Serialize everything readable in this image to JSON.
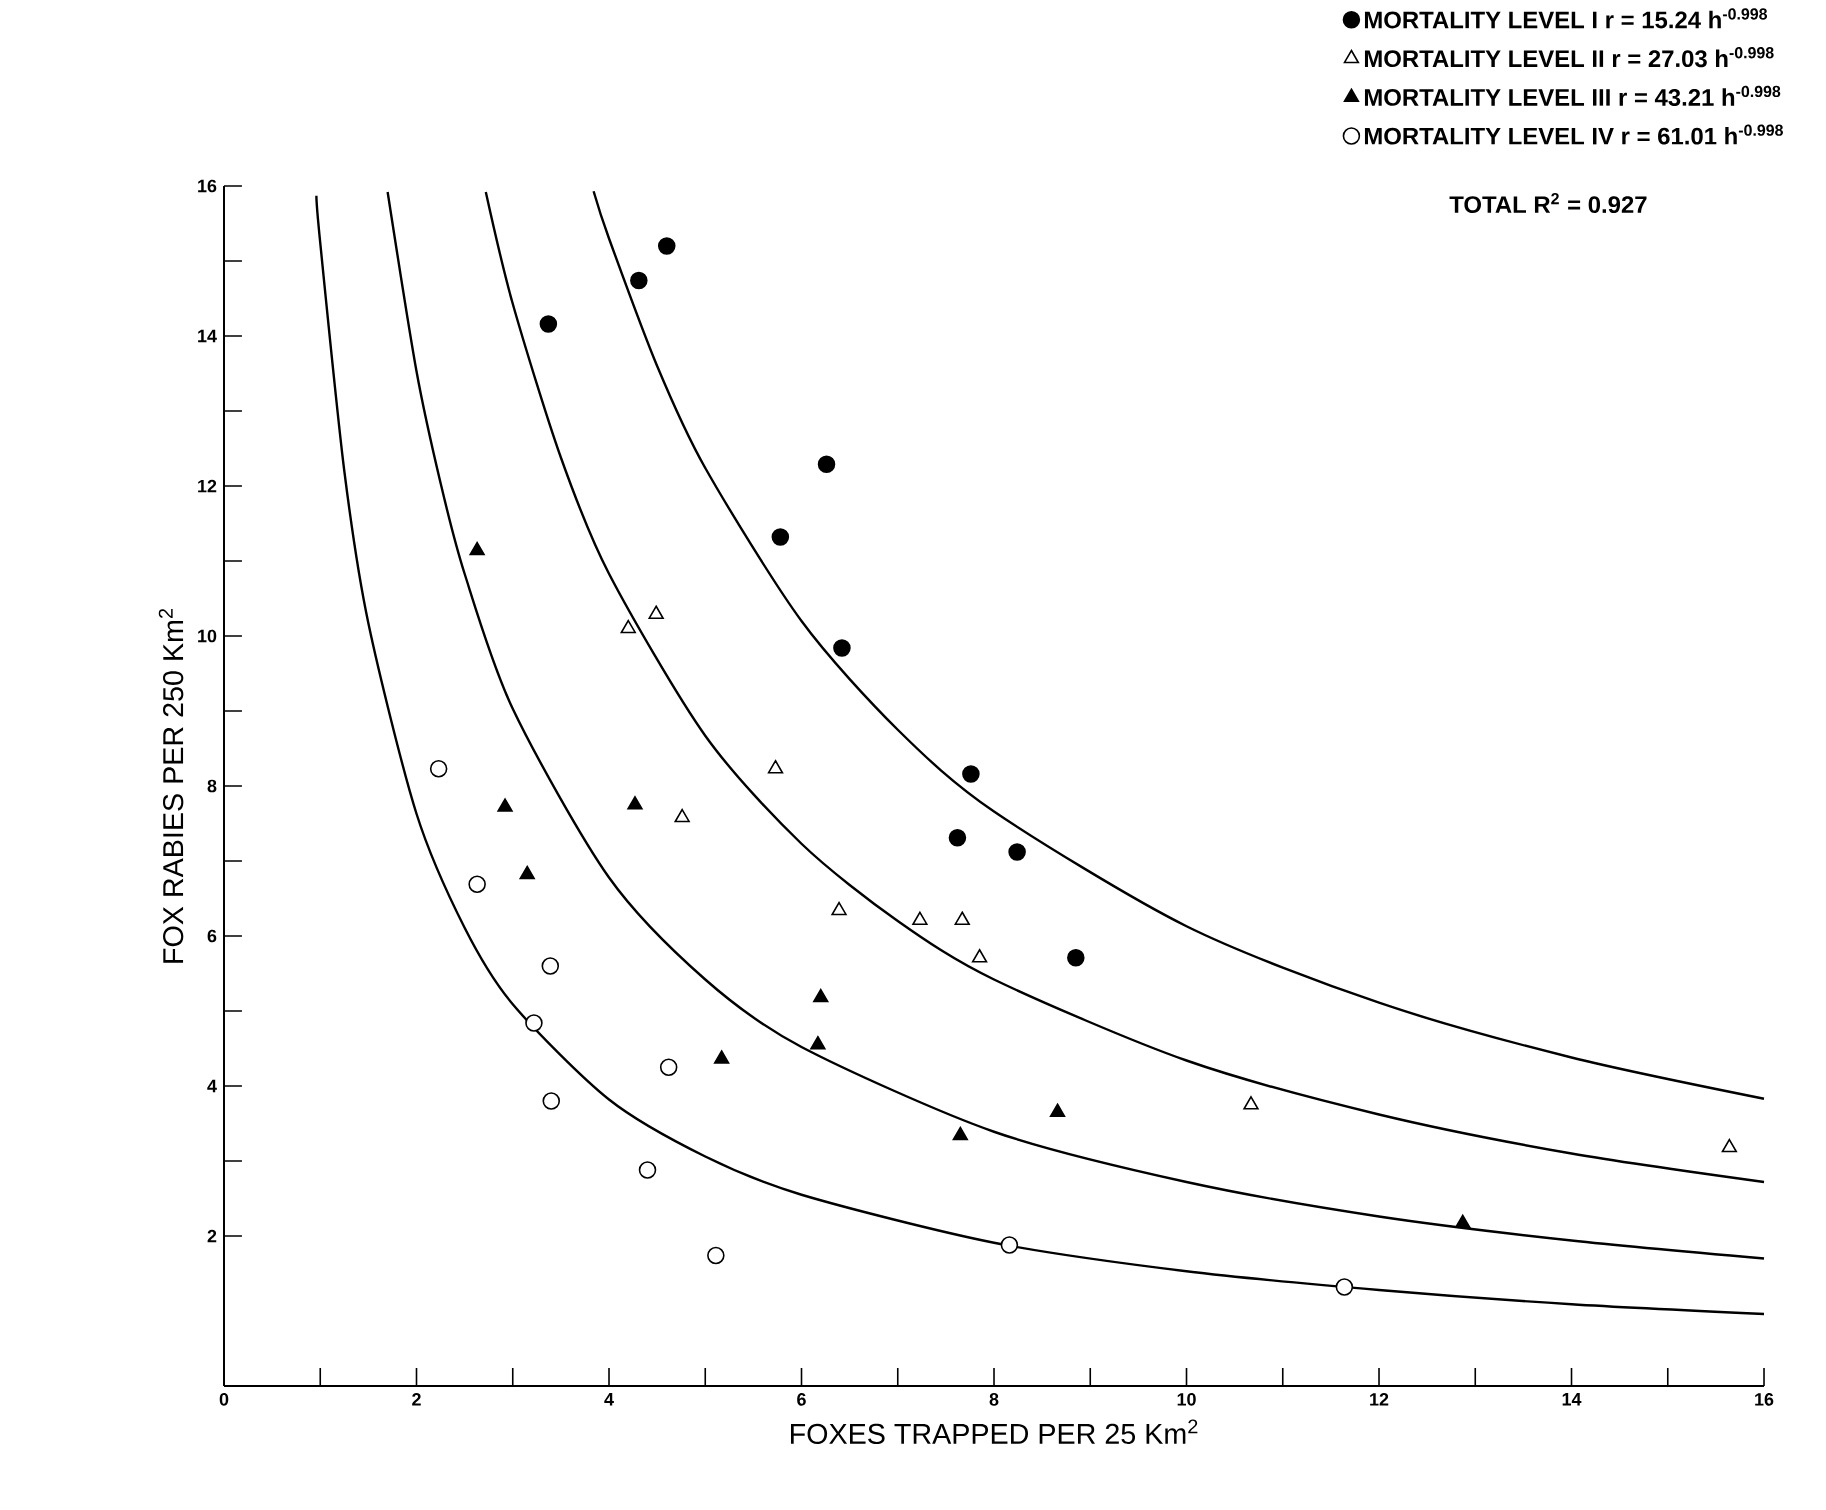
{
  "chart_data": {
    "type": "scatter",
    "xlabel": "FOXES  TRAPPED  PER  25 Km$^{2}$",
    "ylabel": "FOX  RABIES  PER  250 Km$^{2}$",
    "xlim": [
      0,
      16
    ],
    "ylim": [
      0,
      16
    ],
    "xticks": [
      0,
      2,
      4,
      6,
      8,
      10,
      12,
      14,
      16
    ],
    "yticks": [
      2,
      4,
      6,
      8,
      10,
      12,
      14,
      16
    ],
    "legend": "top right",
    "grid": false,
    "annotations": [
      "TOTAL R$^{2}$ = 0.927"
    ],
    "series": [
      {
        "name": "MORTALITY  LEVEL I   r = 15.24 h$^{-0.998}$",
        "color": "#000000",
        "marker": "circle",
        "colors": [
          "#000000",
          "#000000",
          "#000000",
          "#000000",
          "#000000",
          "#000000",
          "#000000",
          "#000000",
          "#000000",
          "#000000"
        ],
        "x": [
          3.37,
          4.31,
          4.6,
          6.26,
          5.78,
          6.42,
          7.76,
          7.62,
          8.24,
          8.85
        ],
        "values": [
          14.16,
          14.74,
          15.2,
          12.29,
          11.32,
          9.84,
          8.16,
          7.31,
          7.12,
          5.71
        ]
      },
      {
        "name": "MORTALITY  LEVEL II  r = 27.03 h$^{-0.998}$",
        "color": "#000000",
        "marker": "triangle",
        "colors": [
          "#ffffff",
          "#ffffff",
          "#ffffff",
          "#ffffff",
          "#ffffff",
          "#ffffff",
          "#ffffff",
          "#ffffff",
          "#ffffff",
          "#ffffff"
        ],
        "x": [
          4.2,
          4.49,
          5.73,
          4.76,
          6.39,
          7.23,
          7.67,
          7.85,
          10.67,
          15.64
        ],
        "values": [
          10.1,
          10.29,
          8.23,
          7.58,
          6.34,
          6.21,
          6.21,
          5.71,
          3.75,
          3.18
        ]
      },
      {
        "name": "MORTALITY  LEVEL III  r = 43.21 h$^{-0.998}$",
        "color": "#000000",
        "marker": "triangle",
        "colors": [
          "#000000",
          "#000000",
          "#000000",
          "#000000",
          "#000000",
          "#000000",
          "#000000",
          "#000000",
          "#000000",
          "#000000"
        ],
        "x": [
          2.63,
          2.92,
          3.15,
          4.27,
          5.17,
          6.2,
          6.17,
          7.65,
          8.66,
          12.87
        ],
        "values": [
          11.14,
          7.72,
          6.82,
          7.75,
          4.36,
          5.18,
          4.55,
          3.34,
          3.65,
          2.17
        ]
      },
      {
        "name": "MORTALITY  LEVEL IV  r = 61.01 h$^{-0.998}$",
        "color": "#000000",
        "marker": "circle",
        "colors": [
          "#ffffff",
          "#ffffff",
          "#ffffff",
          "#ffffff",
          "#ffffff",
          "#ffffff",
          "#ffffff",
          "#ffffff",
          "#ffffff",
          "#ffffff"
        ],
        "x": [
          2.23,
          2.63,
          3.39,
          3.22,
          3.4,
          4.62,
          4.4,
          5.11,
          8.16,
          11.64
        ],
        "values": [
          8.23,
          6.69,
          5.6,
          4.84,
          3.8,
          4.25,
          2.88,
          1.74,
          1.88,
          1.32
        ]
      },
      {
        "type": "line",
        "color": "#000000",
        "marker": "none",
        "x": [
          0.96,
          1,
          1.25,
          1.5,
          2,
          2.5,
          3,
          4,
          5,
          6,
          8,
          10,
          12,
          14,
          16
        ],
        "values": [
          15.87,
          15.24,
          12.2,
          10.17,
          7.63,
          6.11,
          5.09,
          3.82,
          3.06,
          2.55,
          1.91,
          1.53,
          1.28,
          1.09,
          0.96
        ]
      },
      {
        "type": "line",
        "color": "#000000",
        "marker": "none",
        "x": [
          1.7,
          2,
          2.25,
          2.5,
          3,
          4,
          5,
          6,
          8,
          10,
          12,
          14,
          16
        ],
        "values": [
          15.92,
          13.53,
          12.04,
          10.83,
          9.03,
          6.78,
          5.42,
          4.52,
          3.39,
          2.72,
          2.26,
          1.94,
          1.7
        ]
      },
      {
        "type": "line",
        "color": "#000000",
        "marker": "none",
        "x": [
          2.72,
          3,
          3.5,
          4,
          5,
          6,
          7,
          8,
          10,
          12,
          14,
          16
        ],
        "values": [
          15.92,
          14.43,
          12.38,
          10.83,
          8.67,
          7.23,
          6.2,
          5.42,
          4.34,
          3.62,
          3.1,
          2.72
        ]
      },
      {
        "type": "line",
        "color": "#000000",
        "marker": "none",
        "x": [
          3.84,
          4,
          4.5,
          5,
          6,
          7,
          8,
          10,
          12,
          14,
          16
        ],
        "values": [
          15.93,
          15.3,
          13.6,
          12.24,
          10.2,
          8.75,
          7.66,
          6.13,
          5.11,
          4.38,
          3.83
        ]
      }
    ]
  }
}
